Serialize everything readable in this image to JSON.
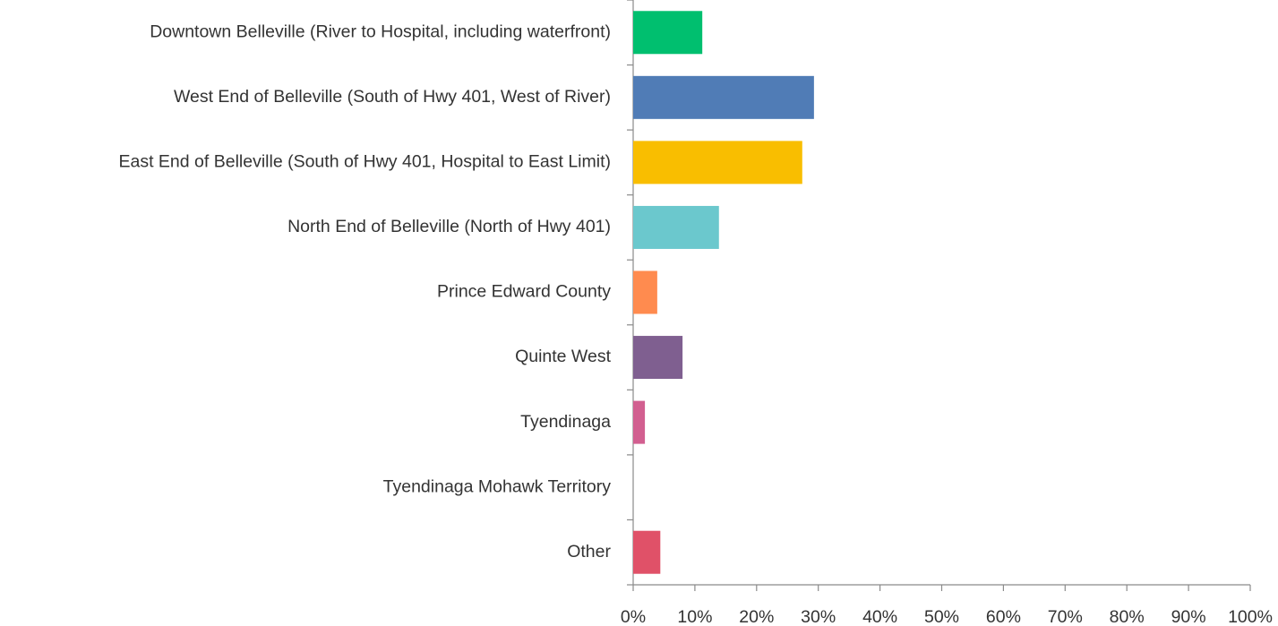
{
  "chart_data": {
    "type": "barh",
    "categories": [
      "Downtown Belleville (River to Hospital, including waterfront)",
      "West End of Belleville (South of Hwy 401, West of River)",
      "East End of Belleville (South of Hwy 401, Hospital to East Limit)",
      "North End of Belleville (North of Hwy 401)",
      "Prince Edward County",
      "Quinte West",
      "Tyendinaga",
      "Tyendinaga Mohawk Territory",
      "Other"
    ],
    "values": [
      11.2,
      29.3,
      27.4,
      13.9,
      3.9,
      8.0,
      1.9,
      0,
      4.4
    ],
    "colors": [
      "#00bf6f",
      "#507cb6",
      "#f9be00",
      "#6bc8cd",
      "#ff8b4f",
      "#7f5f90",
      "#d25f90",
      "#d25f90",
      "#e05168"
    ],
    "xlim": [
      0,
      100
    ],
    "xticks": [
      {
        "value": 0,
        "label": "0%"
      },
      {
        "value": 10,
        "label": "10%"
      },
      {
        "value": 20,
        "label": "20%"
      },
      {
        "value": 30,
        "label": "30%"
      },
      {
        "value": 40,
        "label": "40%"
      },
      {
        "value": 50,
        "label": "50%"
      },
      {
        "value": 60,
        "label": "60%"
      },
      {
        "value": 70,
        "label": "70%"
      },
      {
        "value": 80,
        "label": "80%"
      },
      {
        "value": 90,
        "label": "90%"
      },
      {
        "value": 100,
        "label": "100%"
      }
    ],
    "grid": false
  }
}
